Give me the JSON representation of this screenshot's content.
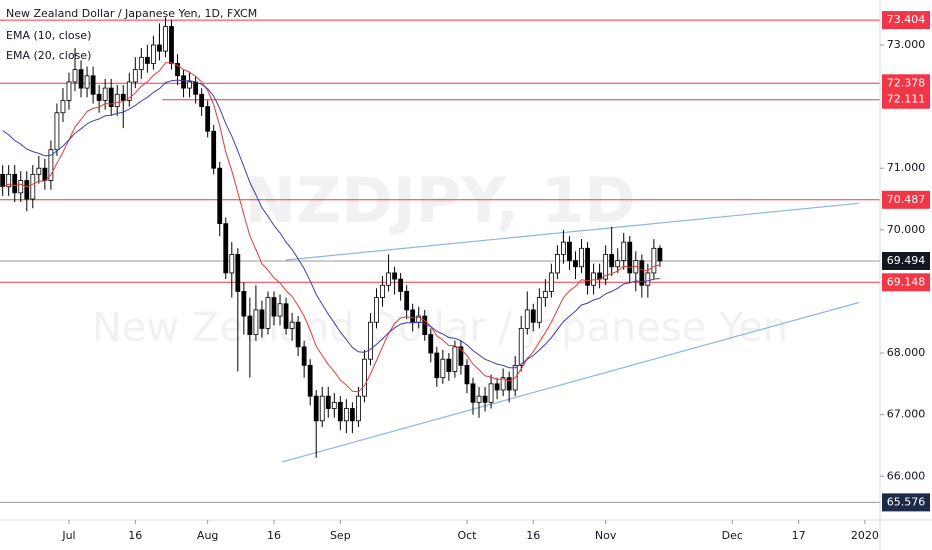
{
  "chart_data": {
    "type": "candlestick",
    "title": "New Zealand Dollar / Japanese Yen, 1D, FXCM",
    "watermark": [
      "NZDJPY, 1D",
      "New Zealand Dollar / Japanese Yen"
    ],
    "up_color": "#ffffff",
    "down_color": "#000000",
    "outline_color": "#000000",
    "x": [
      -11,
      -10,
      -9,
      -8,
      -7,
      -6,
      -5,
      -4,
      -3,
      -2,
      -1,
      0,
      1,
      2,
      3,
      4,
      5,
      6,
      7,
      8,
      9,
      10,
      11,
      12,
      13,
      14,
      15,
      16,
      17,
      18,
      19,
      20,
      21,
      22,
      23,
      24,
      25,
      26,
      27,
      28,
      29,
      30,
      31,
      32,
      33,
      34,
      35,
      36,
      37,
      38,
      39,
      40,
      41,
      42,
      43,
      44,
      45,
      46,
      47,
      48,
      49,
      50,
      51,
      52,
      53,
      54,
      55,
      56,
      57,
      58,
      59,
      60,
      61,
      62,
      63,
      64,
      65,
      66,
      67,
      68,
      69,
      70,
      71,
      72,
      73,
      74,
      75,
      76,
      77,
      78,
      79,
      80,
      81,
      82,
      83,
      84,
      85,
      86,
      87,
      88,
      89,
      90,
      91,
      92,
      93,
      94,
      95,
      96,
      97,
      98
    ],
    "open": [
      70.9,
      70.7,
      70.9,
      70.6,
      70.8,
      70.5,
      70.9,
      71.0,
      70.8,
      71.3,
      71.9,
      72.1,
      72.4,
      72.6,
      72.3,
      72.5,
      72.2,
      72.1,
      72.3,
      72.0,
      72.2,
      72.1,
      72.4,
      72.6,
      72.8,
      72.7,
      73.0,
      72.9,
      73.3,
      72.7,
      72.5,
      72.3,
      72.4,
      72.2,
      72.0,
      71.6,
      71.0,
      70.1,
      69.3,
      69.6,
      69.0,
      68.6,
      68.3,
      68.7,
      68.4,
      68.9,
      68.6,
      68.8,
      68.4,
      68.5,
      68.1,
      67.8,
      67.3,
      66.9,
      67.3,
      67.1,
      67.2,
      66.9,
      67.1,
      66.9,
      67.3,
      67.9,
      68.5,
      68.9,
      69.1,
      69.3,
      69.2,
      69.0,
      68.7,
      68.5,
      68.6,
      68.3,
      68.0,
      67.6,
      67.9,
      67.7,
      68.1,
      67.8,
      67.5,
      67.2,
      67.3,
      67.2,
      67.5,
      67.4,
      67.6,
      67.4,
      67.8,
      68.4,
      68.7,
      68.5,
      68.9,
      69.0,
      69.3,
      69.6,
      69.8,
      69.5,
      69.4,
      69.7,
      69.1,
      69.3,
      69.2,
      69.6,
      69.4,
      69.5,
      69.8,
      69.3,
      69.5,
      69.1,
      69.3,
      69.7
    ],
    "high": [
      71.05,
      71.05,
      71.05,
      70.95,
      70.95,
      71.05,
      71.2,
      71.15,
      71.45,
      72.05,
      72.3,
      72.55,
      72.95,
      72.75,
      72.65,
      72.65,
      72.35,
      72.45,
      72.45,
      72.35,
      72.35,
      72.55,
      72.8,
      72.95,
      73.0,
      73.15,
      73.35,
      73.45,
      73.4,
      72.85,
      72.6,
      72.55,
      72.5,
      72.3,
      72.1,
      71.7,
      71.1,
      70.2,
      69.8,
      69.7,
      69.15,
      68.9,
      69.1,
      68.85,
      69.0,
      69.0,
      68.95,
      68.9,
      68.65,
      68.6,
      68.2,
      67.9,
      67.4,
      67.45,
      67.45,
      67.35,
      67.3,
      67.25,
      67.2,
      67.45,
      68.05,
      68.65,
      69.05,
      69.25,
      69.6,
      69.4,
      69.3,
      69.1,
      68.8,
      68.75,
      68.7,
      68.4,
      68.1,
      68.05,
      68.0,
      68.2,
      68.2,
      67.9,
      67.6,
      67.45,
      67.45,
      67.65,
      67.6,
      67.75,
      67.7,
      67.95,
      68.6,
      69.0,
      68.8,
      69.05,
      69.2,
      69.45,
      69.75,
      70.0,
      69.9,
      69.65,
      69.85,
      69.8,
      69.45,
      69.45,
      69.75,
      70.05,
      69.7,
      69.95,
      69.9,
      69.65,
      69.6,
      69.45,
      69.85,
      69.75
    ],
    "low": [
      70.55,
      70.55,
      70.45,
      70.45,
      70.3,
      70.35,
      70.75,
      70.65,
      70.65,
      71.2,
      71.75,
      71.95,
      72.25,
      72.15,
      72.15,
      72.05,
      71.9,
      71.95,
      71.85,
      71.85,
      71.65,
      72.0,
      72.3,
      72.45,
      72.55,
      72.6,
      72.75,
      72.8,
      72.6,
      72.35,
      72.15,
      72.15,
      72.05,
      71.85,
      71.5,
      70.9,
      69.9,
      69.2,
      68.9,
      67.7,
      68.3,
      67.6,
      68.2,
      68.25,
      68.3,
      68.45,
      68.45,
      68.3,
      68.2,
      67.95,
      67.6,
      67.15,
      66.3,
      66.8,
      66.95,
      66.95,
      66.75,
      66.7,
      66.7,
      66.8,
      67.2,
      67.8,
      68.4,
      68.75,
      69.0,
      68.95,
      68.85,
      68.55,
      68.35,
      68.4,
      68.2,
      67.85,
      67.45,
      67.5,
      67.55,
      67.6,
      67.65,
      67.35,
      67.0,
      66.95,
      67.05,
      67.1,
      67.25,
      67.3,
      67.2,
      67.3,
      67.7,
      68.3,
      68.35,
      68.4,
      68.75,
      68.9,
      69.2,
      69.45,
      69.35,
      69.2,
      69.3,
      68.95,
      68.95,
      69.05,
      69.1,
      69.25,
      69.3,
      69.35,
      69.15,
      69.0,
      68.9,
      68.9,
      69.2,
      69.4
    ],
    "close": [
      70.7,
      70.9,
      70.6,
      70.8,
      70.5,
      70.9,
      71.0,
      70.8,
      71.3,
      71.9,
      72.1,
      72.4,
      72.6,
      72.3,
      72.5,
      72.2,
      72.1,
      72.3,
      72.0,
      72.2,
      72.1,
      72.4,
      72.6,
      72.8,
      72.7,
      73.0,
      72.9,
      73.3,
      72.7,
      72.5,
      72.3,
      72.4,
      72.2,
      72.0,
      71.6,
      71.0,
      70.1,
      69.3,
      69.6,
      69.0,
      68.6,
      68.3,
      68.7,
      68.4,
      68.9,
      68.6,
      68.8,
      68.4,
      68.5,
      68.1,
      67.8,
      67.3,
      66.9,
      67.3,
      67.1,
      67.2,
      66.9,
      67.1,
      66.9,
      67.3,
      67.9,
      68.5,
      68.9,
      69.1,
      69.3,
      69.2,
      69.0,
      68.7,
      68.5,
      68.6,
      68.3,
      68.0,
      67.6,
      67.9,
      67.7,
      68.1,
      67.8,
      67.5,
      67.2,
      67.3,
      67.2,
      67.5,
      67.4,
      67.6,
      67.4,
      67.8,
      68.4,
      68.7,
      68.5,
      68.9,
      69.0,
      69.3,
      69.6,
      69.8,
      69.5,
      69.4,
      69.7,
      69.1,
      69.3,
      69.2,
      69.6,
      69.4,
      69.5,
      69.8,
      69.3,
      69.5,
      69.1,
      69.3,
      69.7,
      69.494
    ],
    "series": [
      {
        "name": "EMA (10, close)",
        "color": "#e53935",
        "values": [
          70.7,
          70.74,
          70.72,
          70.74,
          70.7,
          70.74,
          70.79,
          70.79,
          70.89,
          71.08,
          71.26,
          71.46,
          71.67,
          71.79,
          71.92,
          71.97,
          71.99,
          72.05,
          72.04,
          72.07,
          72.08,
          72.14,
          72.22,
          72.33,
          72.4,
          72.51,
          72.58,
          72.71,
          72.71,
          72.67,
          72.6,
          72.56,
          72.49,
          72.4,
          72.26,
          72.03,
          71.69,
          71.26,
          70.96,
          70.61,
          70.25,
          69.9,
          69.68,
          69.45,
          69.35,
          69.22,
          69.14,
          69.01,
          68.92,
          68.77,
          68.6,
          68.37,
          68.11,
          67.96,
          67.81,
          67.7,
          67.56,
          67.48,
          67.38,
          67.37,
          67.47,
          67.66,
          67.88,
          68.1,
          68.32,
          68.48,
          68.57,
          68.59,
          68.57,
          68.58,
          68.53,
          68.43,
          68.28,
          68.21,
          68.12,
          68.12,
          68.06,
          67.96,
          67.82,
          67.73,
          67.63,
          67.61,
          67.57,
          67.58,
          67.55,
          67.6,
          67.74,
          67.91,
          68.02,
          68.18,
          68.33,
          68.5,
          68.7,
          68.9,
          69.01,
          69.08,
          69.19,
          69.17,
          69.19,
          69.19,
          69.26,
          69.29,
          69.33,
          69.41,
          69.39,
          69.41,
          69.35,
          69.34,
          69.41,
          69.43
        ]
      },
      {
        "name": "EMA (20, close)",
        "color": "#3f3fa8",
        "values": [
          71.61,
          71.54,
          71.45,
          71.39,
          71.31,
          71.27,
          71.24,
          71.2,
          71.21,
          71.28,
          71.36,
          71.46,
          71.57,
          71.64,
          71.72,
          71.77,
          71.8,
          71.85,
          71.86,
          71.89,
          71.91,
          71.96,
          72.02,
          72.09,
          72.15,
          72.23,
          72.29,
          72.39,
          72.42,
          72.43,
          72.42,
          72.42,
          72.4,
          72.36,
          72.29,
          72.17,
          71.97,
          71.72,
          71.52,
          71.28,
          71.03,
          70.77,
          70.57,
          70.36,
          70.22,
          70.07,
          69.95,
          69.8,
          69.68,
          69.53,
          69.37,
          69.17,
          68.95,
          68.79,
          68.63,
          68.49,
          68.34,
          68.22,
          68.09,
          68.02,
          68.01,
          68.06,
          68.14,
          68.23,
          68.33,
          68.41,
          68.47,
          68.49,
          68.49,
          68.5,
          68.48,
          68.43,
          68.35,
          68.31,
          68.25,
          68.24,
          68.2,
          68.13,
          68.04,
          67.97,
          67.9,
          67.86,
          67.82,
          67.8,
          67.76,
          67.76,
          67.82,
          67.9,
          67.96,
          68.05,
          68.14,
          68.25,
          68.38,
          68.51,
          68.6,
          68.68,
          68.78,
          68.81,
          68.86,
          68.89,
          68.96,
          69.0,
          69.05,
          69.12,
          69.14,
          69.17,
          69.16,
          69.17,
          69.2,
          69.21
        ]
      }
    ],
    "levels": [
      {
        "value": 73.404,
        "color": "#f23645",
        "label_background": "#f23645"
      },
      {
        "value": 72.378,
        "color": "#f23645",
        "label_background": "#f23645"
      },
      {
        "value": 72.111,
        "color": "#f23645",
        "label_background": "#f23645",
        "x_start": 15.5
      },
      {
        "value": 70.487,
        "color": "#f23645",
        "label_background": "#f23645"
      },
      {
        "value": 69.494,
        "color": "#9598a1",
        "label_background": "#131722"
      },
      {
        "value": 69.148,
        "color": "#f23645",
        "label_background": "#f23645"
      },
      {
        "value": 65.576,
        "color": "#9598a1",
        "label_background": "#1c2a48"
      }
    ],
    "trendlines": [
      {
        "color": "#8fb4e6",
        "x": [
          36,
          131
        ],
        "y": [
          69.51,
          70.43
        ]
      },
      {
        "color": "#8fb4e6",
        "x": [
          35.3,
          131
        ],
        "y": [
          66.23,
          68.82
        ]
      }
    ],
    "xlim": [
      -11.44,
      134.5
    ],
    "xticks": [
      {
        "value": 0,
        "label": "Jul"
      },
      {
        "value": 11,
        "label": "16"
      },
      {
        "value": 23,
        "label": "Aug"
      },
      {
        "value": 34,
        "label": "16"
      },
      {
        "value": 45,
        "label": "Sep"
      },
      {
        "value": 66,
        "label": "Oct"
      },
      {
        "value": 77,
        "label": "16"
      },
      {
        "value": 89,
        "label": "Nov"
      },
      {
        "value": 110,
        "label": "Dec"
      },
      {
        "value": 121,
        "label": "17"
      },
      {
        "value": 132,
        "label": "2020"
      }
    ],
    "ylim": [
      65.29,
      73.73
    ],
    "yticks": [
      {
        "value": 66,
        "label": "66.000"
      },
      {
        "value": 67,
        "label": "67.000"
      },
      {
        "value": 68,
        "label": "68.000"
      },
      {
        "value": 70,
        "label": "70.000"
      },
      {
        "value": 71,
        "label": "71.000"
      },
      {
        "value": 73,
        "label": "73.000"
      }
    ],
    "grid": false
  }
}
